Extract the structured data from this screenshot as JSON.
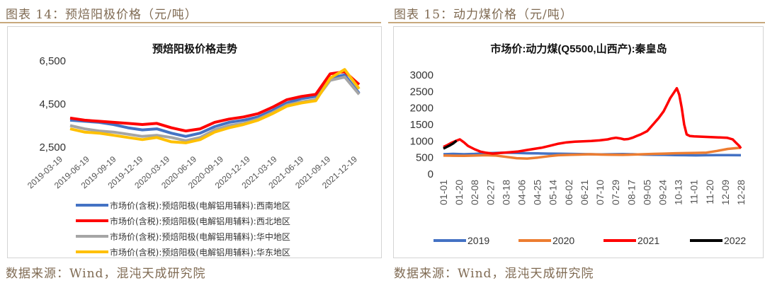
{
  "figures": {
    "left_title": "图表 14：预焙阳极价格（元/吨）",
    "right_title": "图表 15：动力煤价格（元/吨）",
    "left_source": "数据来源：Wind，混沌天成研究院",
    "right_source": "数据来源：Wind，混沌天成研究院"
  },
  "colors": {
    "accent": "#c8a97d",
    "caption": "#7f6a52"
  },
  "chart_data": [
    {
      "type": "line",
      "title": "预焙阳极价格走势",
      "xlabel": "",
      "ylabel": "",
      "ylim": [
        2500,
        6500
      ],
      "yticks": [
        "2,500",
        "4,500",
        "6,500"
      ],
      "xticks": [
        "2019-03-19",
        "2019-06-19",
        "2019-09-19",
        "2019-12-19",
        "2020-03-19",
        "2020-06-19",
        "2020-09-19",
        "2020-12-19",
        "2021-03-19",
        "2021-06-19",
        "2021-09-19",
        "2021-12-19"
      ],
      "grid": false,
      "legend": "bottom",
      "series": [
        {
          "name": "市场价(含税):预焙阳极(电解铝用辅料):西南地区",
          "color": "#4472c4",
          "values": [
            3750,
            3700,
            3650,
            3550,
            3400,
            3300,
            3350,
            3150,
            3000,
            3150,
            3450,
            3650,
            3750,
            3900,
            4200,
            4550,
            4750,
            4850,
            5700,
            5850,
            5000
          ]
        },
        {
          "name": "市场价(含税):预焙阳极(电解铝用辅料):西北地区",
          "color": "#ff0000",
          "values": [
            3850,
            3750,
            3700,
            3650,
            3600,
            3550,
            3600,
            3400,
            3250,
            3350,
            3650,
            3800,
            3900,
            4050,
            4350,
            4700,
            4850,
            4950,
            5900,
            6000,
            5400
          ]
        },
        {
          "name": "市场价(含税):预焙阳极(电解铝用辅料):华中地区",
          "color": "#a5a5a5",
          "values": [
            3500,
            3350,
            3250,
            3200,
            3100,
            3000,
            3050,
            2950,
            2800,
            2950,
            3300,
            3500,
            3600,
            3800,
            4100,
            4450,
            4600,
            4700,
            5600,
            5750,
            4950
          ]
        },
        {
          "name": "市场价(含税):预焙阳极(电解铝用辅料):华东地区",
          "color": "#ffc000",
          "values": [
            3350,
            3200,
            3150,
            3050,
            2950,
            2850,
            2950,
            2750,
            2700,
            2850,
            3200,
            3400,
            3550,
            3750,
            4050,
            4400,
            4550,
            4650,
            5700,
            6100,
            5200
          ]
        }
      ]
    },
    {
      "type": "line",
      "title": "市场价:动力煤(Q5500,山西产):秦皇岛",
      "xlabel": "",
      "ylabel": "",
      "ylim": [
        0,
        3000
      ],
      "yticks": [
        "0",
        "500",
        "1000",
        "1500",
        "2000",
        "2500",
        "3000"
      ],
      "xticks": [
        "01-01",
        "01-20",
        "02-08",
        "02-27",
        "03-18",
        "04-06",
        "04-25",
        "05-14",
        "06-02",
        "06-21",
        "07-10",
        "07-29",
        "08-17",
        "09-05",
        "09-24",
        "10-13",
        "11-01",
        "11-20",
        "12-09",
        "12-28"
      ],
      "grid": false,
      "legend": "bottom",
      "series": [
        {
          "name": "2019",
          "color": "#4472c4",
          "x": [
            0,
            12,
            19,
            25,
            38,
            51,
            64,
            76,
            89,
            102,
            115,
            128,
            140,
            153,
            166,
            179,
            192,
            205,
            218,
            230,
            243,
            256,
            269,
            282,
            294,
            307,
            320,
            333,
            346,
            362
          ],
          "values": [
            600,
            610,
            605,
            600,
            610,
            630,
            640,
            650,
            640,
            630,
            625,
            620,
            615,
            610,
            605,
            600,
            595,
            600,
            605,
            600,
            590,
            585,
            580,
            575,
            570,
            565,
            570,
            575,
            575,
            570
          ]
        },
        {
          "name": "2020",
          "color": "#ed7d31",
          "x": [
            0,
            12,
            25,
            38,
            51,
            64,
            76,
            89,
            102,
            115,
            128,
            140,
            153,
            166,
            179,
            192,
            205,
            218,
            230,
            243,
            256,
            269,
            282,
            294,
            307,
            320,
            333,
            346,
            362
          ],
          "values": [
            560,
            555,
            550,
            560,
            570,
            560,
            520,
            480,
            470,
            500,
            540,
            570,
            580,
            590,
            600,
            590,
            585,
            580,
            590,
            600,
            610,
            620,
            630,
            635,
            640,
            650,
            700,
            760,
            800
          ]
        },
        {
          "name": "2021",
          "color": "#ff0000",
          "x": [
            0,
            5,
            10,
            15,
            20,
            25,
            30,
            38,
            45,
            51,
            60,
            70,
            80,
            90,
            100,
            110,
            120,
            130,
            140,
            150,
            160,
            170,
            180,
            190,
            200,
            205,
            210,
            215,
            220,
            225,
            230,
            235,
            240,
            248,
            255,
            262,
            268,
            272,
            276,
            280,
            284,
            287,
            290,
            293,
            296,
            300,
            305,
            315,
            325,
            335,
            345,
            352,
            356,
            360,
            362
          ],
          "values": [
            820,
            880,
            950,
            1000,
            1050,
            960,
            850,
            750,
            680,
            650,
            620,
            640,
            660,
            680,
            720,
            760,
            800,
            860,
            920,
            960,
            980,
            990,
            1000,
            1020,
            1050,
            1080,
            1100,
            1080,
            1050,
            1060,
            1100,
            1150,
            1200,
            1300,
            1500,
            1700,
            1900,
            2100,
            2300,
            2450,
            2600,
            2400,
            2000,
            1500,
            1200,
            1150,
            1140,
            1130,
            1120,
            1110,
            1100,
            1050,
            950,
            850,
            780
          ]
        },
        {
          "name": "2022",
          "color": "#000000",
          "x": [
            0,
            4,
            8,
            12,
            16
          ],
          "values": [
            770,
            820,
            870,
            930,
            1010
          ]
        }
      ]
    }
  ]
}
